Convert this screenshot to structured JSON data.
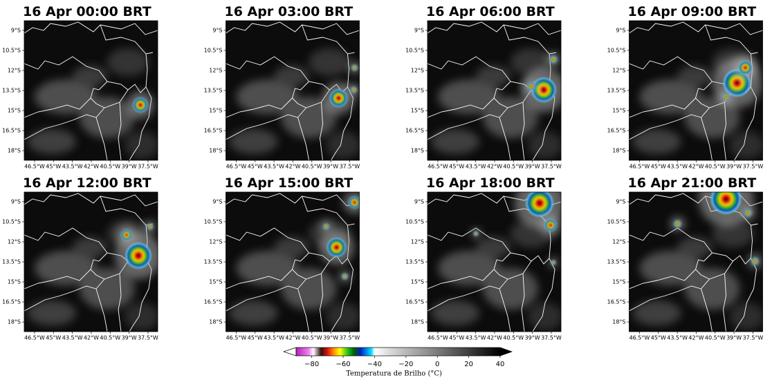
{
  "panels": [
    {
      "title": "16 Apr 00:00 BRT"
    },
    {
      "title": "16 Apr 03:00 BRT"
    },
    {
      "title": "16 Apr 06:00 BRT"
    },
    {
      "title": "16 Apr 09:00 BRT"
    },
    {
      "title": "16 Apr 12:00 BRT"
    },
    {
      "title": "16 Apr 15:00 BRT"
    },
    {
      "title": "16 Apr 18:00 BRT"
    },
    {
      "title": "16 Apr 21:00 BRT"
    }
  ],
  "map": {
    "lonlim": [
      -47.32,
      -36.73
    ],
    "latlim": [
      -8.28,
      -18.72
    ],
    "lon_ticks": [
      {
        "value": -46.5,
        "label": "46.5°W"
      },
      {
        "value": -45,
        "label": "45°W"
      },
      {
        "value": -43.5,
        "label": "43.5°W"
      },
      {
        "value": -42,
        "label": "42°W"
      },
      {
        "value": -40.5,
        "label": "40.5°W"
      },
      {
        "value": -39,
        "label": "39°W"
      },
      {
        "value": -37.5,
        "label": "37.5°W"
      }
    ],
    "lat_ticks": [
      {
        "value": -9,
        "label": "9°S"
      },
      {
        "value": -10.5,
        "label": "10.5°S"
      },
      {
        "value": -12,
        "label": "12°S"
      },
      {
        "value": -13.5,
        "label": "13.5°S"
      },
      {
        "value": -15,
        "label": "15°S"
      },
      {
        "value": -16.5,
        "label": "16.5°S"
      },
      {
        "value": -18,
        "label": "18°S"
      }
    ]
  },
  "colorbar": {
    "label": "Temperatura de Brilho (°C)",
    "lim": [
      -90,
      40
    ],
    "ticks": [
      {
        "value": -80,
        "label": "−80"
      },
      {
        "value": -60,
        "label": "−60"
      },
      {
        "value": -40,
        "label": "−40"
      },
      {
        "value": -20,
        "label": "−20"
      },
      0,
      20,
      40
    ],
    "colormap": [
      {
        "value": -90,
        "color": "#b020b0"
      },
      {
        "value": -82,
        "color": "#f080f0"
      },
      {
        "value": -79,
        "color": "#ffffff"
      },
      {
        "value": -74,
        "color": "#301010"
      },
      {
        "value": -70,
        "color": "#e01010"
      },
      {
        "value": -66,
        "color": "#ff9000"
      },
      {
        "value": -62,
        "color": "#ffff00"
      },
      {
        "value": -57,
        "color": "#20c020"
      },
      {
        "value": -53,
        "color": "#006000"
      },
      {
        "value": -49,
        "color": "#0020c0"
      },
      {
        "value": -42,
        "color": "#00e0ff"
      },
      {
        "value": -40,
        "color": "#ffffff"
      },
      {
        "value": -30,
        "color": "#d8d8d8"
      },
      {
        "value": 40,
        "color": "#000000"
      }
    ]
  }
}
